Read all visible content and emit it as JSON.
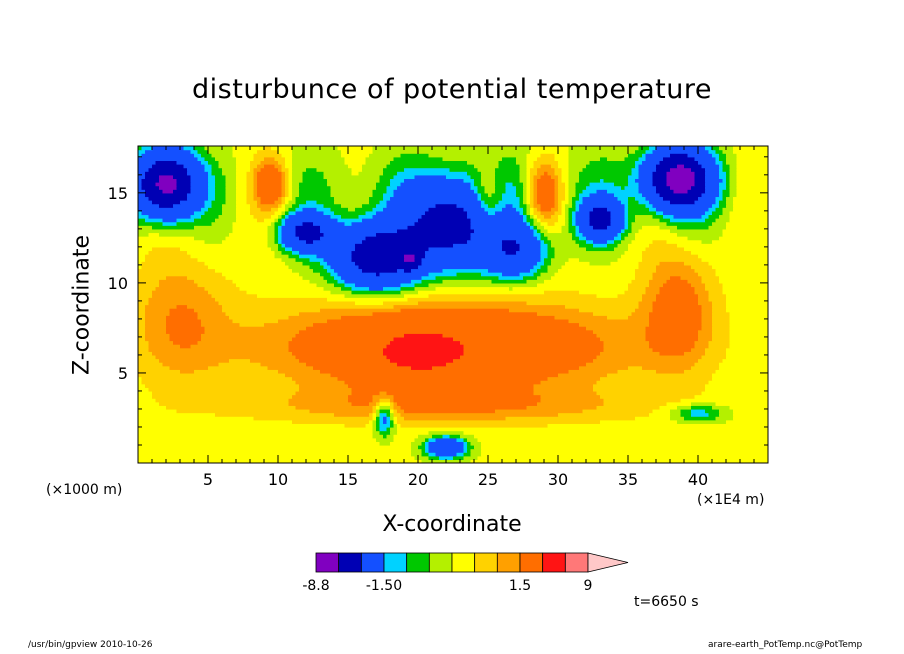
{
  "chart_data": {
    "type": "heatmap",
    "title": "disturbunce of potential temperature",
    "xlabel": "X-coordinate",
    "ylabel": "Z-coordinate",
    "x_unit_label": "(×1E4 m)",
    "y_unit_label": "(×1000 m)",
    "xlim": [
      0,
      45
    ],
    "ylim": [
      0,
      17.6
    ],
    "x_ticks": [
      5,
      10,
      15,
      20,
      25,
      30,
      35,
      40
    ],
    "y_ticks": [
      5,
      10,
      15
    ],
    "grid": false,
    "colorbar": {
      "tick_labels": [
        "-8.8",
        "-1.50",
        "1.5",
        "9"
      ],
      "levels": [
        -8.8,
        -6.4,
        -4.0,
        -1.5,
        -1.0,
        -0.5,
        0.0,
        0.5,
        1.0,
        1.5,
        4.0,
        6.5,
        9.0
      ],
      "colors": [
        "#e610b4",
        "#8000c0",
        "#0000b4",
        "#1450ff",
        "#00d2ff",
        "#00c800",
        "#b4f000",
        "#ffff00",
        "#ffd200",
        "#ffa000",
        "#ff6e00",
        "#ff1414",
        "#ff7878",
        "#ffc8c8"
      ],
      "extends": "max"
    },
    "features": [
      {
        "kind": "cold-anomaly",
        "label": "upper-left cold cell",
        "x": 2,
        "z": 15.5,
        "value": -6
      },
      {
        "kind": "cold-anomaly",
        "label": "upper-right cold cell",
        "x": 38.6,
        "z": 15.8,
        "value": -6
      },
      {
        "kind": "cold-anomaly",
        "label": "central upper cold region",
        "x": 19,
        "z": 12,
        "value": -6
      },
      {
        "kind": "warm-anomaly",
        "label": "mid-level warm band",
        "x": 22,
        "z": 6.5,
        "value": 4
      },
      {
        "kind": "warm-anomaly",
        "label": "left mid-level warm cell",
        "x": 3,
        "z": 8,
        "value": 2
      },
      {
        "kind": "warm-anomaly",
        "label": "right mid-level warm cell",
        "x": 38.7,
        "z": 8.6,
        "value": 3
      }
    ]
  },
  "annotation": {
    "time_label": "t=6650 s"
  },
  "footer": {
    "left": "/usr/bin/gpview   2010-10-26",
    "right": "arare-earth_PotTemp.nc@PotTemp"
  }
}
